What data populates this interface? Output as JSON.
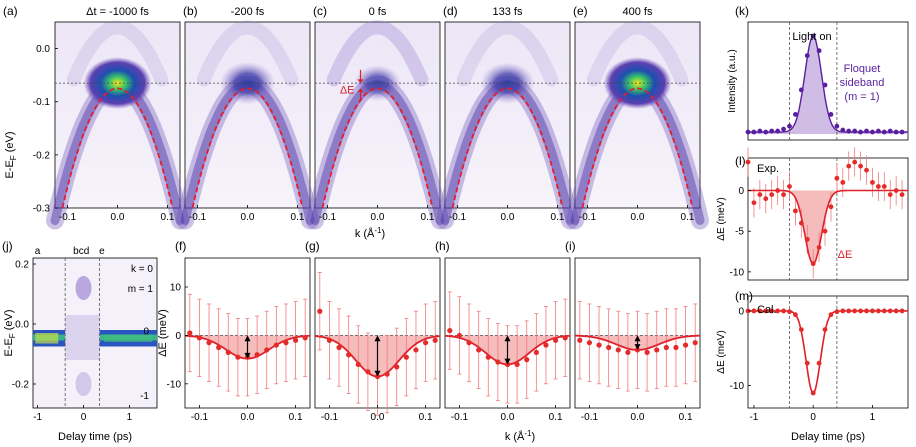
{
  "colors": {
    "band_fit": "#e0202a",
    "data_point": "#e52a2a",
    "shade_red": "#f5b0b0",
    "floquet": "#5a1fa0",
    "floquet_fill": "#c7b1e2",
    "arpes_low": "#ffffff",
    "arpes_mid": "#7a5cc0",
    "arpes_high": "#1a2f9a"
  },
  "panels_top": [
    {
      "label": "(a)",
      "title": "Δt = -1000 fs"
    },
    {
      "label": "(b)",
      "title": "-200 fs"
    },
    {
      "label": "(c)",
      "title": "0 fs"
    },
    {
      "label": "(d)",
      "title": "133 fs"
    },
    {
      "label": "(e)",
      "title": "400 fs"
    }
  ],
  "top_axes": {
    "ylabel": "E-E",
    "ylabel_sub": "F",
    "ylabel_unit": " (eV)",
    "yticks": [
      "0.0",
      "-0.1",
      "-0.2",
      "-0.3"
    ],
    "xticks": [
      "-0.1",
      "0.0",
      "0.1"
    ],
    "xlabel": "k (Å",
    "xlabel_sup": "-1",
    "xlabel_end": ")",
    "delta_e": "ΔE"
  },
  "panel_j": {
    "label": "(j)",
    "ylabel": "E-E",
    "ylabel_sub": "F",
    "ylabel_unit": " (eV)",
    "yticks": [
      "0.2",
      "0.0",
      "-0.2"
    ],
    "xticks": [
      "-1",
      "0",
      "1"
    ],
    "xlabel": "Delay time (ps)",
    "markers": [
      "a",
      "bcd",
      "e"
    ],
    "k_label": "k = 0",
    "m_label": "m = 1",
    "m0_label": "0",
    "mm1_label": "-1"
  },
  "bottom_panels": [
    {
      "label": "(f)"
    },
    {
      "label": "(g)"
    },
    {
      "label": "(h)"
    },
    {
      "label": "(i)"
    }
  ],
  "bottom_axes": {
    "ylabel": "ΔE (meV)",
    "yticks": [
      "10",
      "0",
      "-10"
    ],
    "xticks": [
      "-0.1",
      "0.0",
      "0.1"
    ],
    "xlabel": "k (Å",
    "xlabel_sup": "-1",
    "xlabel_end": ")"
  },
  "panel_k": {
    "label": "(k)",
    "ylabel": "Intensity (a.u.)",
    "light_on": "Light on",
    "floquet_lines": [
      "Floquet",
      "sideband",
      "(m = 1)"
    ]
  },
  "panel_l": {
    "label": "(l)",
    "tag": "Exp.",
    "ylabel": "ΔE (meV)",
    "yticks": [
      "0",
      "-5",
      "-10"
    ],
    "delta_e": "ΔE"
  },
  "panel_m": {
    "label": "(m)",
    "tag": "Cal.",
    "ylabel": "ΔE (meV)",
    "yticks": [
      "0",
      "-10"
    ],
    "xticks": [
      "-1",
      "0",
      "1"
    ],
    "xlabel": "Delay time (ps)"
  },
  "chart_data": [
    {
      "type": "line",
      "panel": "f",
      "x": [
        -0.12,
        -0.1,
        -0.08,
        -0.06,
        -0.04,
        -0.02,
        0.0,
        0.02,
        0.04,
        0.06,
        0.08,
        0.1,
        0.12
      ],
      "series": [
        {
          "values": [
            0.5,
            -0.5,
            -1.5,
            -2.5,
            -3.5,
            -4.5,
            -4.5,
            -4.0,
            -3.0,
            -2.0,
            -1.5,
            -1.0,
            -0.5
          ]
        }
      ],
      "fit_min": -4.8,
      "xlim": [
        -0.13,
        0.13
      ],
      "ylim": [
        -15,
        15
      ]
    },
    {
      "type": "line",
      "panel": "g",
      "x": [
        -0.12,
        -0.1,
        -0.08,
        -0.06,
        -0.04,
        -0.02,
        0.0,
        0.02,
        0.04,
        0.06,
        0.08,
        0.1,
        0.12
      ],
      "series": [
        {
          "values": [
            5.0,
            -1.0,
            -2.5,
            -4.0,
            -6.0,
            -7.5,
            -8.5,
            -8.0,
            -6.5,
            -4.5,
            -3.0,
            -1.5,
            -1.0
          ]
        }
      ],
      "fit_min": -8.5,
      "xlim": [
        -0.13,
        0.13
      ],
      "ylim": [
        -15,
        15
      ]
    },
    {
      "type": "line",
      "panel": "h",
      "x": [
        -0.12,
        -0.1,
        -0.08,
        -0.06,
        -0.04,
        -0.02,
        0.0,
        0.02,
        0.04,
        0.06,
        0.08,
        0.1,
        0.12
      ],
      "series": [
        {
          "values": [
            1.0,
            0.0,
            -1.5,
            -3.0,
            -4.5,
            -5.5,
            -6.0,
            -6.0,
            -5.0,
            -3.5,
            -2.0,
            -1.0,
            -0.5
          ]
        }
      ],
      "fit_min": -6.0,
      "xlim": [
        -0.13,
        0.13
      ],
      "ylim": [
        -15,
        15
      ]
    },
    {
      "type": "line",
      "panel": "i",
      "x": [
        -0.12,
        -0.1,
        -0.08,
        -0.06,
        -0.04,
        -0.02,
        0.0,
        0.02,
        0.04,
        0.06,
        0.08,
        0.1,
        0.12
      ],
      "series": [
        {
          "values": [
            -1.0,
            -1.5,
            -2.0,
            -2.5,
            -3.0,
            -3.5,
            -3.0,
            -3.5,
            -3.0,
            -2.5,
            -2.5,
            -2.0,
            -1.5
          ]
        }
      ],
      "fit_min": -3.0,
      "xlim": [
        -0.13,
        0.13
      ],
      "ylim": [
        -15,
        15
      ]
    },
    {
      "type": "scatter",
      "panel": "k",
      "x": [
        -1.1,
        -1.0,
        -0.9,
        -0.8,
        -0.7,
        -0.6,
        -0.5,
        -0.4,
        -0.3,
        -0.2,
        -0.1,
        0.0,
        0.1,
        0.2,
        0.3,
        0.4,
        0.5,
        0.6,
        0.7,
        0.8,
        0.9,
        1.0,
        1.1,
        1.2,
        1.3,
        1.4,
        1.5
      ],
      "series": [
        {
          "values": [
            0.02,
            0.02,
            0.03,
            0.02,
            0.03,
            0.03,
            0.05,
            0.08,
            0.2,
            0.45,
            0.8,
            1.0,
            0.85,
            0.5,
            0.2,
            0.08,
            0.04,
            0.03,
            0.03,
            0.02,
            0.03,
            0.02,
            0.03,
            0.02,
            0.03,
            0.02,
            0.02
          ]
        }
      ],
      "xlim": [
        -1.1,
        1.6
      ]
    },
    {
      "type": "line",
      "panel": "l",
      "x": [
        -1.1,
        -1.0,
        -0.9,
        -0.8,
        -0.7,
        -0.6,
        -0.5,
        -0.4,
        -0.3,
        -0.2,
        -0.1,
        0.0,
        0.1,
        0.2,
        0.3,
        0.4,
        0.5,
        0.6,
        0.7,
        0.8,
        0.9,
        1.0,
        1.1,
        1.2,
        1.3,
        1.4,
        1.5
      ],
      "series": [
        {
          "values": [
            3.5,
            -1.5,
            -0.5,
            -1.0,
            -0.5,
            0.0,
            -0.5,
            0.5,
            -2.5,
            -4.0,
            -6.0,
            -9.0,
            -7.0,
            -5.0,
            -2.0,
            1.5,
            1.0,
            3.0,
            3.5,
            3.0,
            2.5,
            1.0,
            0.5,
            0.5,
            -0.5,
            0.0,
            -0.5
          ]
        }
      ],
      "fit_min": -9.0,
      "xlim": [
        -1.1,
        1.6
      ],
      "ylim": [
        -11,
        4
      ]
    },
    {
      "type": "line",
      "panel": "m",
      "x": [
        -1.1,
        -1.0,
        -0.9,
        -0.8,
        -0.7,
        -0.6,
        -0.5,
        -0.4,
        -0.3,
        -0.2,
        -0.1,
        0.0,
        0.1,
        0.2,
        0.3,
        0.4,
        0.5,
        0.6,
        0.7,
        0.8,
        0.9,
        1.0,
        1.1,
        1.2,
        1.3,
        1.4,
        1.5
      ],
      "series": [
        {
          "values": [
            0,
            0,
            0,
            0,
            0,
            0,
            0,
            -0.1,
            -0.5,
            -2.5,
            -7.0,
            -11.0,
            -7.0,
            -2.5,
            -0.5,
            -0.1,
            0,
            0,
            0,
            0,
            0,
            0,
            0,
            0,
            0,
            0,
            0
          ]
        }
      ],
      "xlim": [
        -1.1,
        1.6
      ],
      "ylim": [
        -13,
        2
      ]
    }
  ]
}
